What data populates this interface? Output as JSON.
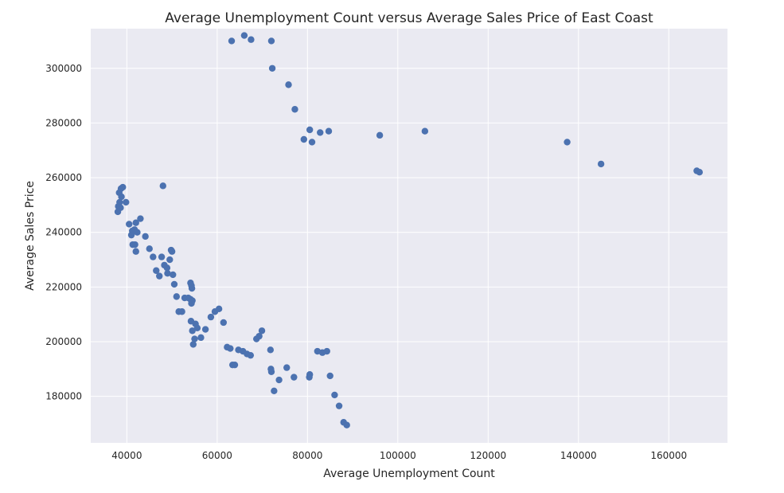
{
  "chart_data": {
    "type": "scatter",
    "title": "Average Unemployment Count versus Average Sales Price of East Coast",
    "xlabel": "Average Unemployment Count",
    "ylabel": "Average Sales Price",
    "xlim": [
      32000,
      173000
    ],
    "ylim": [
      163000,
      314500
    ],
    "xticks": [
      40000,
      60000,
      80000,
      100000,
      120000,
      140000,
      160000
    ],
    "yticks": [
      180000,
      200000,
      220000,
      240000,
      260000,
      280000,
      300000
    ],
    "xtick_labels": [
      "40000",
      "60000",
      "80000",
      "100000",
      "120000",
      "140000",
      "160000"
    ],
    "ytick_labels": [
      "180000",
      "200000",
      "220000",
      "240000",
      "260000",
      "280000",
      "300000"
    ],
    "grid": true,
    "marker_color": "#4c72b0",
    "background_color": "#eaeaf2",
    "points": [
      {
        "x": 63200,
        "y": 310000
      },
      {
        "x": 66000,
        "y": 312000
      },
      {
        "x": 67500,
        "y": 310500
      },
      {
        "x": 72000,
        "y": 310000
      },
      {
        "x": 72200,
        "y": 300000
      },
      {
        "x": 75800,
        "y": 294000
      },
      {
        "x": 77200,
        "y": 285000
      },
      {
        "x": 80500,
        "y": 277500
      },
      {
        "x": 82800,
        "y": 276500
      },
      {
        "x": 84700,
        "y": 277000
      },
      {
        "x": 79200,
        "y": 274000
      },
      {
        "x": 81000,
        "y": 273000
      },
      {
        "x": 96000,
        "y": 275500
      },
      {
        "x": 106000,
        "y": 277000
      },
      {
        "x": 137500,
        "y": 273000
      },
      {
        "x": 145000,
        "y": 265000
      },
      {
        "x": 166200,
        "y": 262500
      },
      {
        "x": 166800,
        "y": 262000
      },
      {
        "x": 48000,
        "y": 257000
      },
      {
        "x": 39100,
        "y": 256500
      },
      {
        "x": 38700,
        "y": 256000
      },
      {
        "x": 38300,
        "y": 254500
      },
      {
        "x": 38800,
        "y": 253000
      },
      {
        "x": 39800,
        "y": 251000
      },
      {
        "x": 38400,
        "y": 251000
      },
      {
        "x": 38100,
        "y": 249500
      },
      {
        "x": 38600,
        "y": 249000
      },
      {
        "x": 38000,
        "y": 247500
      },
      {
        "x": 43000,
        "y": 245000
      },
      {
        "x": 40500,
        "y": 243000
      },
      {
        "x": 42000,
        "y": 243500
      },
      {
        "x": 41700,
        "y": 241000
      },
      {
        "x": 41200,
        "y": 240500
      },
      {
        "x": 42300,
        "y": 240000
      },
      {
        "x": 41000,
        "y": 239000
      },
      {
        "x": 44100,
        "y": 238500
      },
      {
        "x": 41300,
        "y": 235500
      },
      {
        "x": 41800,
        "y": 235500
      },
      {
        "x": 45000,
        "y": 234000
      },
      {
        "x": 42000,
        "y": 233000
      },
      {
        "x": 49800,
        "y": 233500
      },
      {
        "x": 50000,
        "y": 233000
      },
      {
        "x": 45800,
        "y": 231000
      },
      {
        "x": 47700,
        "y": 231000
      },
      {
        "x": 49500,
        "y": 230000
      },
      {
        "x": 48300,
        "y": 228000
      },
      {
        "x": 48900,
        "y": 227000
      },
      {
        "x": 46500,
        "y": 226000
      },
      {
        "x": 49000,
        "y": 225000
      },
      {
        "x": 50200,
        "y": 224500
      },
      {
        "x": 47200,
        "y": 224000
      },
      {
        "x": 54100,
        "y": 221500
      },
      {
        "x": 50500,
        "y": 221000
      },
      {
        "x": 54300,
        "y": 220500
      },
      {
        "x": 54400,
        "y": 219500
      },
      {
        "x": 51000,
        "y": 216500
      },
      {
        "x": 52800,
        "y": 216000
      },
      {
        "x": 53600,
        "y": 216000
      },
      {
        "x": 54100,
        "y": 215500
      },
      {
        "x": 54500,
        "y": 215000
      },
      {
        "x": 54300,
        "y": 214000
      },
      {
        "x": 60400,
        "y": 212000
      },
      {
        "x": 59500,
        "y": 211000
      },
      {
        "x": 51500,
        "y": 211000
      },
      {
        "x": 52200,
        "y": 211000
      },
      {
        "x": 58600,
        "y": 209000
      },
      {
        "x": 61400,
        "y": 207000
      },
      {
        "x": 54200,
        "y": 207500
      },
      {
        "x": 55200,
        "y": 206500
      },
      {
        "x": 55600,
        "y": 205000
      },
      {
        "x": 57400,
        "y": 204500
      },
      {
        "x": 54500,
        "y": 204000
      },
      {
        "x": 69900,
        "y": 204000
      },
      {
        "x": 69300,
        "y": 202000
      },
      {
        "x": 68700,
        "y": 201000
      },
      {
        "x": 55000,
        "y": 201000
      },
      {
        "x": 56400,
        "y": 201500
      },
      {
        "x": 54700,
        "y": 199000
      },
      {
        "x": 62200,
        "y": 198000
      },
      {
        "x": 62900,
        "y": 197500
      },
      {
        "x": 64700,
        "y": 197000
      },
      {
        "x": 65700,
        "y": 196500
      },
      {
        "x": 71800,
        "y": 197000
      },
      {
        "x": 82200,
        "y": 196500
      },
      {
        "x": 83300,
        "y": 196000
      },
      {
        "x": 84300,
        "y": 196500
      },
      {
        "x": 66600,
        "y": 195500
      },
      {
        "x": 67400,
        "y": 195000
      },
      {
        "x": 63400,
        "y": 191500
      },
      {
        "x": 63900,
        "y": 191500
      },
      {
        "x": 71900,
        "y": 190000
      },
      {
        "x": 72000,
        "y": 189000
      },
      {
        "x": 75400,
        "y": 190500
      },
      {
        "x": 80500,
        "y": 188000
      },
      {
        "x": 80400,
        "y": 187000
      },
      {
        "x": 77000,
        "y": 187000
      },
      {
        "x": 85000,
        "y": 187500
      },
      {
        "x": 73700,
        "y": 186000
      },
      {
        "x": 72600,
        "y": 182000
      },
      {
        "x": 86000,
        "y": 180500
      },
      {
        "x": 87000,
        "y": 176500
      },
      {
        "x": 88000,
        "y": 170500
      },
      {
        "x": 88700,
        "y": 169500
      }
    ]
  }
}
